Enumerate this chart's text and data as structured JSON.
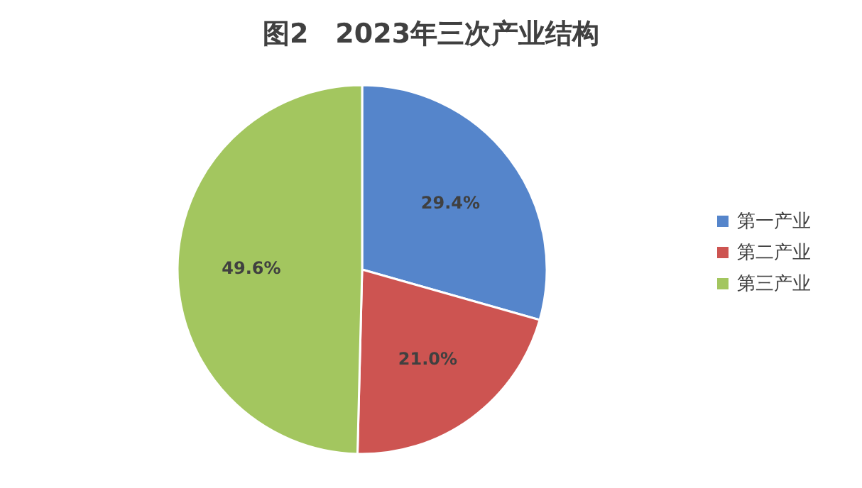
{
  "chart_data": {
    "type": "pie",
    "title": "图2　2023年三次产业结构",
    "categories": [
      "第一产业",
      "第二产业",
      "第三产业"
    ],
    "values": [
      29.4,
      21.0,
      49.6
    ],
    "colors": [
      "#5585cb",
      "#cd5451",
      "#a3c65f"
    ],
    "value_labels": [
      "29.4%",
      "21.0%",
      "49.6%"
    ],
    "legend": "right"
  }
}
